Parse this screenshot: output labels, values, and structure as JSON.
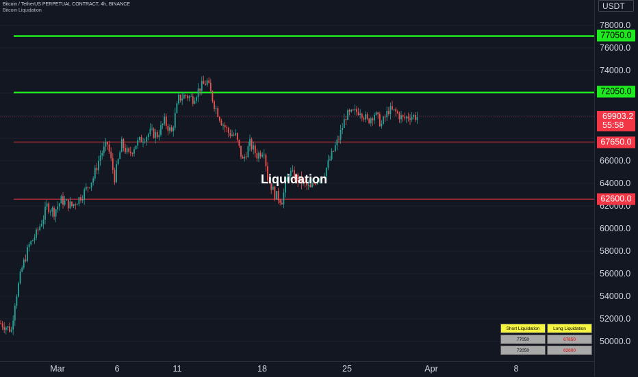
{
  "header": {
    "symbol": "Bitcoin / TetherUS PERPETUAL CONTRACT, 4h, BINANCE",
    "indicator": "Bitcoin Liquidation"
  },
  "currency": "USDT",
  "price_axis": {
    "ticks": [
      "78000.0",
      "76000.0",
      "74000.0",
      "66000.0",
      "64000.0",
      "62000.0",
      "60000.0",
      "58000.0",
      "56000.0",
      "54000.0",
      "52000.0",
      "50000.0"
    ]
  },
  "price_tags": [
    {
      "label": "77050.0",
      "color": "#1ee81e"
    },
    {
      "label": "72050.0",
      "color": "#1ee81e"
    },
    {
      "label": "67650.0",
      "color": "#f23645"
    },
    {
      "label": "62600.0",
      "color": "#f23645"
    }
  ],
  "current_price": {
    "price": "69903.2",
    "countdown": "55:58"
  },
  "time_axis": {
    "labels": [
      "Mar",
      "6",
      "11",
      "18",
      "25",
      "Apr",
      "8"
    ]
  },
  "chart_label": "Liquidation",
  "liquidation_table": {
    "headers": [
      "Short Liquidation",
      "Long Liquidation"
    ],
    "rows": [
      [
        "77050",
        "67650"
      ],
      [
        "72050",
        "62600"
      ]
    ]
  },
  "chart_data": {
    "type": "candlestick",
    "levels": [
      {
        "price": 77050,
        "kind": "short",
        "color": "#1ee81e"
      },
      {
        "price": 72050,
        "kind": "short",
        "color": "#1ee81e"
      },
      {
        "price": 67650,
        "kind": "long",
        "color": "#f23645"
      },
      {
        "price": 62600,
        "kind": "long",
        "color": "#f23645"
      }
    ],
    "last_price": 69903.2,
    "colors": {
      "up": "#26a69a",
      "down": "#ef5350"
    },
    "y_range": [
      49400,
      79000
    ],
    "trend": [
      [
        0,
        51600
      ],
      [
        4,
        51200
      ],
      [
        6,
        51000
      ],
      [
        8,
        53500
      ],
      [
        12,
        56500
      ],
      [
        16,
        58500
      ],
      [
        20,
        59500
      ],
      [
        24,
        61000
      ],
      [
        26,
        62000
      ],
      [
        30,
        61500
      ],
      [
        34,
        62500
      ],
      [
        40,
        62000
      ],
      [
        46,
        63000
      ],
      [
        52,
        64500
      ],
      [
        56,
        66500
      ],
      [
        60,
        67500
      ],
      [
        64,
        64500
      ],
      [
        68,
        67500
      ],
      [
        72,
        66500
      ],
      [
        76,
        67500
      ],
      [
        80,
        68000
      ],
      [
        84,
        68500
      ],
      [
        88,
        68300
      ],
      [
        92,
        69500
      ],
      [
        96,
        68500
      ],
      [
        100,
        71500
      ],
      [
        104,
        71800
      ],
      [
        108,
        71500
      ],
      [
        112,
        72500
      ],
      [
        116,
        73000
      ],
      [
        120,
        71000
      ],
      [
        124,
        69500
      ],
      [
        128,
        68500
      ],
      [
        132,
        68200
      ],
      [
        136,
        66000
      ],
      [
        140,
        67500
      ],
      [
        144,
        66500
      ],
      [
        148,
        67000
      ],
      [
        150,
        64500
      ],
      [
        154,
        63000
      ],
      [
        158,
        62500
      ],
      [
        162,
        65000
      ],
      [
        166,
        64500
      ],
      [
        170,
        64000
      ],
      [
        174,
        63500
      ],
      [
        178,
        64500
      ],
      [
        182,
        65000
      ],
      [
        186,
        66500
      ],
      [
        190,
        68000
      ],
      [
        194,
        70000
      ],
      [
        198,
        70200
      ],
      [
        202,
        70500
      ],
      [
        206,
        69500
      ],
      [
        210,
        70200
      ],
      [
        214,
        69200
      ],
      [
        218,
        70500
      ],
      [
        222,
        70300
      ],
      [
        226,
        69700
      ],
      [
        230,
        70000
      ],
      [
        234,
        69900
      ]
    ]
  }
}
